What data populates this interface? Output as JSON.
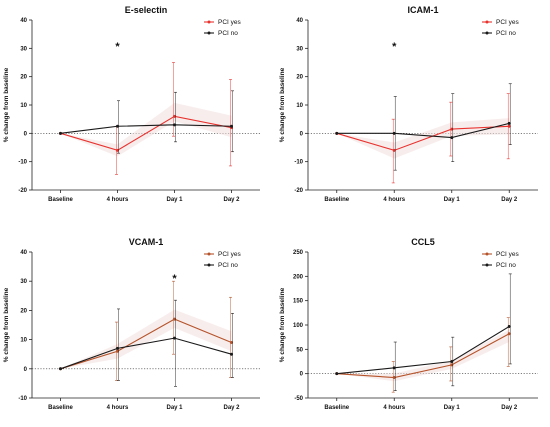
{
  "colors": {
    "yes": "#e8322e",
    "no": "#1a1a1a",
    "yes_alt": "#b5532a",
    "ci_fill": "#f3dede"
  },
  "chart_data": [
    {
      "type": "line",
      "title": "E-selectin",
      "ylabel": "% change from baseline",
      "categories": [
        "Baseline",
        "4 hours",
        "Day 1",
        "Day 2"
      ],
      "ylim": [
        -20,
        40
      ],
      "yticks": [
        -20,
        -10,
        0,
        10,
        20,
        30,
        40
      ],
      "tick_labels": [
        "-20",
        "-10",
        "0",
        "10",
        "20",
        "30",
        "40"
      ],
      "legend": "top-right",
      "star": {
        "category_index": 1,
        "text": "*"
      },
      "yes_color_key": "yes",
      "series": [
        {
          "name": "PCI yes",
          "color_key": "yes",
          "values": [
            0,
            -6,
            6,
            2
          ],
          "err_low": [
            0,
            -14.5,
            -1,
            -11.5
          ],
          "err_high": [
            0,
            2.5,
            25,
            19
          ]
        },
        {
          "name": "PCI no",
          "color_key": "no",
          "values": [
            0,
            2.5,
            3,
            2.5
          ],
          "err_low": [
            0,
            -7,
            -3,
            -6.5
          ],
          "err_high": [
            0,
            11.5,
            14.5,
            15
          ]
        }
      ]
    },
    {
      "type": "line",
      "title": "ICAM-1",
      "ylabel": "% change from baseline",
      "categories": [
        "Baseline",
        "4 hours",
        "Day 1",
        "Day 2"
      ],
      "ylim": [
        -20,
        40
      ],
      "yticks": [
        -20,
        -10,
        0,
        10,
        20,
        30,
        40
      ],
      "tick_labels": [
        "-20",
        "-10",
        "0",
        "10",
        "20",
        "30",
        "40"
      ],
      "legend": "top-right",
      "star": {
        "category_index": 1,
        "text": "*"
      },
      "yes_color_key": "yes",
      "series": [
        {
          "name": "PCI yes",
          "color_key": "yes",
          "values": [
            0,
            -6,
            1.5,
            2.5
          ],
          "err_low": [
            0,
            -17.5,
            -8,
            -9
          ],
          "err_high": [
            0,
            5,
            11,
            14
          ]
        },
        {
          "name": "PCI no",
          "color_key": "no",
          "values": [
            0,
            0,
            -1.5,
            3.5
          ],
          "err_low": [
            0,
            -13,
            -10,
            -4
          ],
          "err_high": [
            0,
            13,
            14,
            17.5
          ]
        }
      ]
    },
    {
      "type": "line",
      "title": "VCAM-1",
      "ylabel": "% change from baseline",
      "categories": [
        "Baseline",
        "4 hours",
        "Day 1",
        "Day 2"
      ],
      "ylim": [
        -10,
        40
      ],
      "yticks": [
        -10,
        0,
        10,
        20,
        30,
        40
      ],
      "tick_labels": [
        "-10",
        "0",
        "10",
        "20",
        "30",
        "40"
      ],
      "legend": "top-right",
      "star": {
        "category_index": 2,
        "text": "*"
      },
      "yes_color_key": "yes_alt",
      "series": [
        {
          "name": "PCI yes",
          "color_key": "yes_alt",
          "values": [
            0,
            6,
            17,
            9
          ],
          "err_low": [
            0,
            -4,
            5,
            -3
          ],
          "err_high": [
            0,
            16,
            30,
            24.5
          ]
        },
        {
          "name": "PCI no",
          "color_key": "no",
          "values": [
            0,
            7,
            10.5,
            5
          ],
          "err_low": [
            0,
            -4,
            -6,
            -3
          ],
          "err_high": [
            0,
            20.5,
            23.5,
            19
          ]
        }
      ]
    },
    {
      "type": "line",
      "title": "CCL5",
      "ylabel": "% change from baseline",
      "categories": [
        "Baseline",
        "4 hours",
        "Day 1",
        "Day 2"
      ],
      "ylim": [
        -50,
        250
      ],
      "yticks": [
        -50,
        0,
        50,
        100,
        150,
        200,
        250
      ],
      "tick_labels": [
        "-50",
        "0",
        "50",
        "100",
        "150",
        "200",
        "250"
      ],
      "legend": "top-right",
      "yes_color_key": "yes_alt",
      "series": [
        {
          "name": "PCI yes",
          "color_key": "yes_alt",
          "values": [
            0,
            -8,
            18,
            82
          ],
          "err_low": [
            0,
            -38,
            -15,
            15
          ],
          "err_high": [
            0,
            25,
            55,
            115
          ]
        },
        {
          "name": "PCI no",
          "color_key": "no",
          "values": [
            0,
            12,
            25,
            97
          ],
          "err_low": [
            0,
            -35,
            -25,
            20
          ],
          "err_high": [
            0,
            65,
            75,
            205
          ]
        }
      ]
    }
  ]
}
